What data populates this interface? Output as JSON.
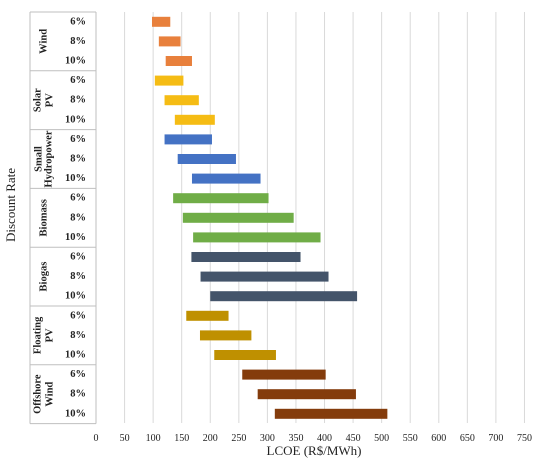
{
  "chart_data": {
    "type": "bar",
    "subtype": "floating-horizontal-range",
    "title": "",
    "xlabel": "LCOE (R$/MWh)",
    "ylabel": "Discount Rate",
    "xlim": [
      0,
      750
    ],
    "xticks": [
      0,
      50,
      100,
      150,
      200,
      250,
      300,
      350,
      400,
      450,
      500,
      550,
      600,
      650,
      700,
      750
    ],
    "grid": "vertical",
    "groups": [
      {
        "name": "Wind",
        "label_lines": [
          "Wind"
        ],
        "color": "#E8803C",
        "bars": [
          {
            "rate": "6%",
            "min": 98,
            "max": 130
          },
          {
            "rate": "8%",
            "min": 110,
            "max": 148
          },
          {
            "rate": "10%",
            "min": 122,
            "max": 168
          }
        ]
      },
      {
        "name": "Solar PV",
        "label_lines": [
          "Solar",
          "PV"
        ],
        "color": "#F5BC14",
        "bars": [
          {
            "rate": "6%",
            "min": 103,
            "max": 153
          },
          {
            "rate": "8%",
            "min": 120,
            "max": 180
          },
          {
            "rate": "10%",
            "min": 138,
            "max": 208
          }
        ]
      },
      {
        "name": "Small Hydropower",
        "label_lines": [
          "Small",
          "Hydropower"
        ],
        "color": "#4472C4",
        "bars": [
          {
            "rate": "6%",
            "min": 120,
            "max": 203
          },
          {
            "rate": "8%",
            "min": 143,
            "max": 245
          },
          {
            "rate": "10%",
            "min": 168,
            "max": 288
          }
        ]
      },
      {
        "name": "Biomass",
        "label_lines": [
          "Biomass"
        ],
        "color": "#70AD47",
        "bars": [
          {
            "rate": "6%",
            "min": 135,
            "max": 302
          },
          {
            "rate": "8%",
            "min": 152,
            "max": 346
          },
          {
            "rate": "10%",
            "min": 170,
            "max": 393
          }
        ]
      },
      {
        "name": "Biogas",
        "label_lines": [
          "Biogas"
        ],
        "color": "#44546A",
        "bars": [
          {
            "rate": "6%",
            "min": 167,
            "max": 358
          },
          {
            "rate": "8%",
            "min": 183,
            "max": 407
          },
          {
            "rate": "10%",
            "min": 200,
            "max": 457
          }
        ]
      },
      {
        "name": "Floating PV",
        "label_lines": [
          "Floating",
          "PV"
        ],
        "color": "#BF9000",
        "bars": [
          {
            "rate": "6%",
            "min": 158,
            "max": 232
          },
          {
            "rate": "8%",
            "min": 182,
            "max": 272
          },
          {
            "rate": "10%",
            "min": 207,
            "max": 315
          }
        ]
      },
      {
        "name": "Offshore Wind",
        "label_lines": [
          "Offshore",
          "Wind"
        ],
        "color": "#843C0C",
        "bars": [
          {
            "rate": "6%",
            "min": 256,
            "max": 402
          },
          {
            "rate": "8%",
            "min": 283,
            "max": 455
          },
          {
            "rate": "10%",
            "min": 313,
            "max": 510
          }
        ]
      }
    ]
  }
}
